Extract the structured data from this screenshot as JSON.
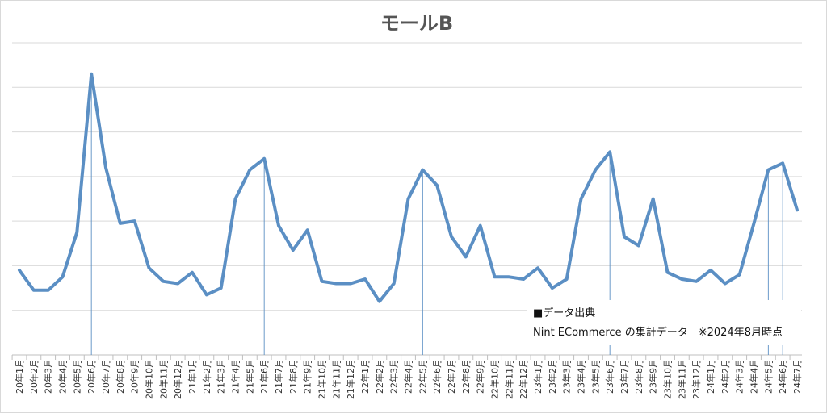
{
  "chart_data": {
    "type": "line",
    "title": "モールB",
    "xlabel": "",
    "ylabel": "",
    "ylim": [
      0,
      7
    ],
    "grid": true,
    "legend": "none",
    "line_color": "#5b8fc4",
    "marker_line_color": "#5b8fc4",
    "categories": [
      "20年1月",
      "20年2月",
      "20年3月",
      "20年4月",
      "20年5月",
      "20年6月",
      "20年7月",
      "20年8月",
      "20年9月",
      "20年10月",
      "20年11月",
      "20年12月",
      "21年1月",
      "21年2月",
      "21年3月",
      "21年4月",
      "21年5月",
      "21年6月",
      "21年7月",
      "21年8月",
      "21年9月",
      "21年10月",
      "21年11月",
      "21年12月",
      "22年1月",
      "22年2月",
      "22年3月",
      "22年4月",
      "22年5月",
      "22年6月",
      "22年7月",
      "22年8月",
      "22年9月",
      "22年10月",
      "22年11月",
      "22年12月",
      "23年1月",
      "23年2月",
      "23年3月",
      "23年4月",
      "23年5月",
      "23年6月",
      "23年7月",
      "23年8月",
      "23年9月",
      "23年10月",
      "23年11月",
      "23年12月",
      "24年1月",
      "24年2月",
      "24年3月",
      "24年4月",
      "24年5月",
      "24年6月",
      "24年7月"
    ],
    "values": [
      1.9,
      1.45,
      1.45,
      1.75,
      2.75,
      6.3,
      4.2,
      2.95,
      3.0,
      1.95,
      1.65,
      1.6,
      1.85,
      1.35,
      1.5,
      3.5,
      4.15,
      4.4,
      2.9,
      2.35,
      2.8,
      1.65,
      1.6,
      1.6,
      1.7,
      1.2,
      1.6,
      3.5,
      4.15,
      3.8,
      2.65,
      2.2,
      2.9,
      1.75,
      1.75,
      1.7,
      1.95,
      1.5,
      1.7,
      3.5,
      4.15,
      4.55,
      2.65,
      2.45,
      3.5,
      1.85,
      1.7,
      1.65,
      1.9,
      1.6,
      1.8,
      2.95,
      4.15,
      4.3,
      3.25
    ],
    "marker_lines": [
      "20年6月",
      "21年6月",
      "22年5月",
      "23年6月",
      "24年5月",
      "24年6月"
    ],
    "note_lines": [
      "■データ出典",
      "Nint ECommerce の集計データ　※2024年8月時点"
    ]
  }
}
